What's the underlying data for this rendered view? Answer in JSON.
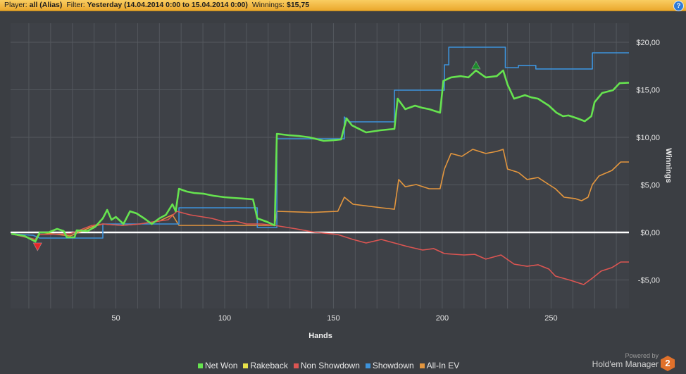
{
  "header": {
    "player_label": "Player:",
    "player_value": "all (Alias)",
    "filter_label": "Filter:",
    "filter_value": "Yesterday (14.04.2014 0:00 to 15.04.2014 0:00)",
    "winnings_label": "Winnings:",
    "winnings_value": "$15,75",
    "help_icon": "help-icon",
    "help_glyph": "?"
  },
  "branding": {
    "powered_by": "Powered by",
    "product": "Hold'em Manager",
    "logo_glyph": "2",
    "logo_color": "#e0712b"
  },
  "chart_data": {
    "type": "line",
    "title": "",
    "xlabel": "Hands",
    "ylabel": "Winnings",
    "xlim": [
      1.6,
      285.8
    ],
    "ylim": [
      -8,
      22
    ],
    "x_ticks": [
      50,
      100,
      150,
      200,
      250
    ],
    "x_tick_labels": [
      "50",
      "100",
      "150",
      "200",
      "250"
    ],
    "x_minor_step": 10,
    "y_ticks": [
      -5,
      0,
      5,
      10,
      15,
      20
    ],
    "y_tick_labels": [
      "-$5,00",
      "$0,00",
      "$5,00",
      "$10,00",
      "$15,00",
      "$20,00"
    ],
    "y_axis_side": "right",
    "grid": true,
    "zero_line_color": "#ffffff",
    "legend_position": "bottom",
    "series": [
      {
        "name": "Net Won",
        "color": "#66e34f",
        "points": [
          [
            2,
            -0.15
          ],
          [
            8,
            -0.37
          ],
          [
            13,
            -0.96
          ],
          [
            15,
            0
          ],
          [
            19,
            0
          ],
          [
            23,
            0.37
          ],
          [
            26,
            0.15
          ],
          [
            27.5,
            -0.52
          ],
          [
            31,
            -0.52
          ],
          [
            32,
            0.22
          ],
          [
            37,
            0.15
          ],
          [
            40.5,
            0.59
          ],
          [
            44,
            1.48
          ],
          [
            46,
            2.37
          ],
          [
            48,
            1.33
          ],
          [
            50,
            1.63
          ],
          [
            53.5,
            0.89
          ],
          [
            56.5,
            2.22
          ],
          [
            59.5,
            2.0
          ],
          [
            63,
            1.48
          ],
          [
            66.5,
            0.89
          ],
          [
            70,
            1.48
          ],
          [
            73,
            1.85
          ],
          [
            76,
            2.96
          ],
          [
            77.5,
            2.22
          ],
          [
            79,
            4.59
          ],
          [
            82.5,
            4.3
          ],
          [
            86,
            4.15
          ],
          [
            90.5,
            4.07
          ],
          [
            95,
            3.85
          ],
          [
            100,
            3.7
          ],
          [
            104,
            3.63
          ],
          [
            108.5,
            3.56
          ],
          [
            113,
            3.48
          ],
          [
            115,
            1.48
          ],
          [
            119.5,
            1.11
          ],
          [
            123,
            0.74
          ],
          [
            124,
            10.37
          ],
          [
            129.5,
            10.22
          ],
          [
            134,
            10.15
          ],
          [
            139,
            10.0
          ],
          [
            145.5,
            9.63
          ],
          [
            150,
            9.7
          ],
          [
            153.5,
            9.78
          ],
          [
            156,
            12.0
          ],
          [
            158.5,
            11.26
          ],
          [
            165,
            10.52
          ],
          [
            171.5,
            10.74
          ],
          [
            178,
            10.89
          ],
          [
            179.5,
            14.07
          ],
          [
            183,
            12.96
          ],
          [
            187.5,
            13.33
          ],
          [
            191,
            13.1
          ],
          [
            194,
            12.96
          ],
          [
            199,
            12.59
          ],
          [
            200.5,
            15.93
          ],
          [
            204,
            16.3
          ],
          [
            208.5,
            16.44
          ],
          [
            212,
            16.3
          ],
          [
            215.5,
            17.04
          ],
          [
            220,
            16.3
          ],
          [
            225,
            16.44
          ],
          [
            228,
            17.04
          ],
          [
            230,
            15.56
          ],
          [
            233,
            14.07
          ],
          [
            238,
            14.44
          ],
          [
            241,
            14.2
          ],
          [
            244,
            14.07
          ],
          [
            249,
            13.33
          ],
          [
            252.5,
            12.59
          ],
          [
            255.5,
            12.22
          ],
          [
            258,
            12.3
          ],
          [
            262,
            12.0
          ],
          [
            265.5,
            11.7
          ],
          [
            268.5,
            12.22
          ],
          [
            270,
            13.7
          ],
          [
            273.5,
            14.67
          ],
          [
            278.5,
            14.96
          ],
          [
            281.5,
            15.7
          ],
          [
            285.8,
            15.75
          ]
        ]
      },
      {
        "name": "Rakeback",
        "color": "#e8e24a",
        "points": []
      },
      {
        "name": "Non Showdown",
        "color": "#dc5552",
        "points": [
          [
            2,
            -0.15
          ],
          [
            13,
            -0.74
          ],
          [
            15,
            -0.22
          ],
          [
            29,
            -0.15
          ],
          [
            39,
            0.74
          ],
          [
            44,
            0.89
          ],
          [
            53,
            0.74
          ],
          [
            61,
            0.89
          ],
          [
            67,
            1.1
          ],
          [
            74,
            1.33
          ],
          [
            78,
            2.22
          ],
          [
            84,
            1.85
          ],
          [
            94,
            1.48
          ],
          [
            100,
            1.11
          ],
          [
            105,
            1.2
          ],
          [
            110,
            0.89
          ],
          [
            117,
            0.89
          ],
          [
            123,
            0.74
          ],
          [
            133,
            0.37
          ],
          [
            142,
            0
          ],
          [
            152,
            -0.22
          ],
          [
            159,
            -0.74
          ],
          [
            165,
            -1.11
          ],
          [
            172,
            -0.74
          ],
          [
            178,
            -1.11
          ],
          [
            184,
            -1.48
          ],
          [
            191,
            -1.85
          ],
          [
            196,
            -1.7
          ],
          [
            201,
            -2.22
          ],
          [
            210,
            -2.37
          ],
          [
            215,
            -2.3
          ],
          [
            220,
            -2.81
          ],
          [
            227,
            -2.37
          ],
          [
            233,
            -3.33
          ],
          [
            239,
            -3.56
          ],
          [
            244,
            -3.4
          ],
          [
            249,
            -3.85
          ],
          [
            252,
            -4.59
          ],
          [
            259,
            -5.04
          ],
          [
            265,
            -5.48
          ],
          [
            269,
            -4.81
          ],
          [
            273,
            -4.07
          ],
          [
            278,
            -3.7
          ],
          [
            282,
            -3.11
          ],
          [
            285.8,
            -3.11
          ]
        ]
      },
      {
        "name": "Showdown",
        "color": "#3d93dc",
        "points": [
          [
            2,
            -0.15
          ],
          [
            12,
            -0.3
          ],
          [
            15,
            -0.59
          ],
          [
            44,
            -0.59
          ],
          [
            44,
            0.89
          ],
          [
            79,
            0.89
          ],
          [
            79,
            2.59
          ],
          [
            115,
            2.59
          ],
          [
            115,
            0.52
          ],
          [
            124,
            0.52
          ],
          [
            124,
            9.85
          ],
          [
            155,
            9.85
          ],
          [
            155,
            12.15
          ],
          [
            157,
            11.63
          ],
          [
            178,
            11.63
          ],
          [
            178,
            14.96
          ],
          [
            201,
            14.96
          ],
          [
            201,
            17.63
          ],
          [
            203,
            17.63
          ],
          [
            203,
            19.48
          ],
          [
            229,
            19.48
          ],
          [
            229,
            17.33
          ],
          [
            235,
            17.33
          ],
          [
            235,
            17.56
          ],
          [
            243,
            17.56
          ],
          [
            243,
            17.19
          ],
          [
            269,
            17.19
          ],
          [
            269,
            18.89
          ],
          [
            285.8,
            18.89
          ]
        ]
      },
      {
        "name": "All-In EV",
        "color": "#e3963e",
        "points": [
          [
            2,
            -0.15
          ],
          [
            13,
            -0.74
          ],
          [
            15,
            0
          ],
          [
            29,
            -0.37
          ],
          [
            39,
            0.59
          ],
          [
            44,
            0.89
          ],
          [
            53,
            0.74
          ],
          [
            61,
            0.89
          ],
          [
            70,
            1.2
          ],
          [
            76,
            1.85
          ],
          [
            79,
            0.74
          ],
          [
            115,
            0.74
          ],
          [
            123,
            0.74
          ],
          [
            124,
            2.22
          ],
          [
            140,
            2.1
          ],
          [
            152,
            2.22
          ],
          [
            155,
            3.7
          ],
          [
            159,
            2.96
          ],
          [
            172,
            2.59
          ],
          [
            178,
            2.44
          ],
          [
            180,
            5.56
          ],
          [
            183,
            4.81
          ],
          [
            188,
            5.04
          ],
          [
            194,
            4.59
          ],
          [
            199,
            4.59
          ],
          [
            201,
            6.67
          ],
          [
            204,
            8.3
          ],
          [
            209,
            8.0
          ],
          [
            214,
            8.74
          ],
          [
            220,
            8.3
          ],
          [
            225,
            8.52
          ],
          [
            228,
            8.74
          ],
          [
            230,
            6.67
          ],
          [
            235,
            6.3
          ],
          [
            239,
            5.56
          ],
          [
            244,
            5.78
          ],
          [
            249,
            5.04
          ],
          [
            252,
            4.59
          ],
          [
            256,
            3.7
          ],
          [
            261,
            3.56
          ],
          [
            264,
            3.33
          ],
          [
            267,
            3.7
          ],
          [
            269,
            5.04
          ],
          [
            272,
            5.93
          ],
          [
            278,
            6.52
          ],
          [
            282,
            7.41
          ],
          [
            285.8,
            7.41
          ]
        ]
      }
    ],
    "markers": [
      {
        "kind": "min",
        "series": "Net Won",
        "hand": 14,
        "value": -0.96,
        "color": "#e3272a"
      },
      {
        "kind": "max",
        "series": "Net Won",
        "hand": 215.5,
        "value": 17.04,
        "color": "#1d8a2c"
      }
    ]
  }
}
